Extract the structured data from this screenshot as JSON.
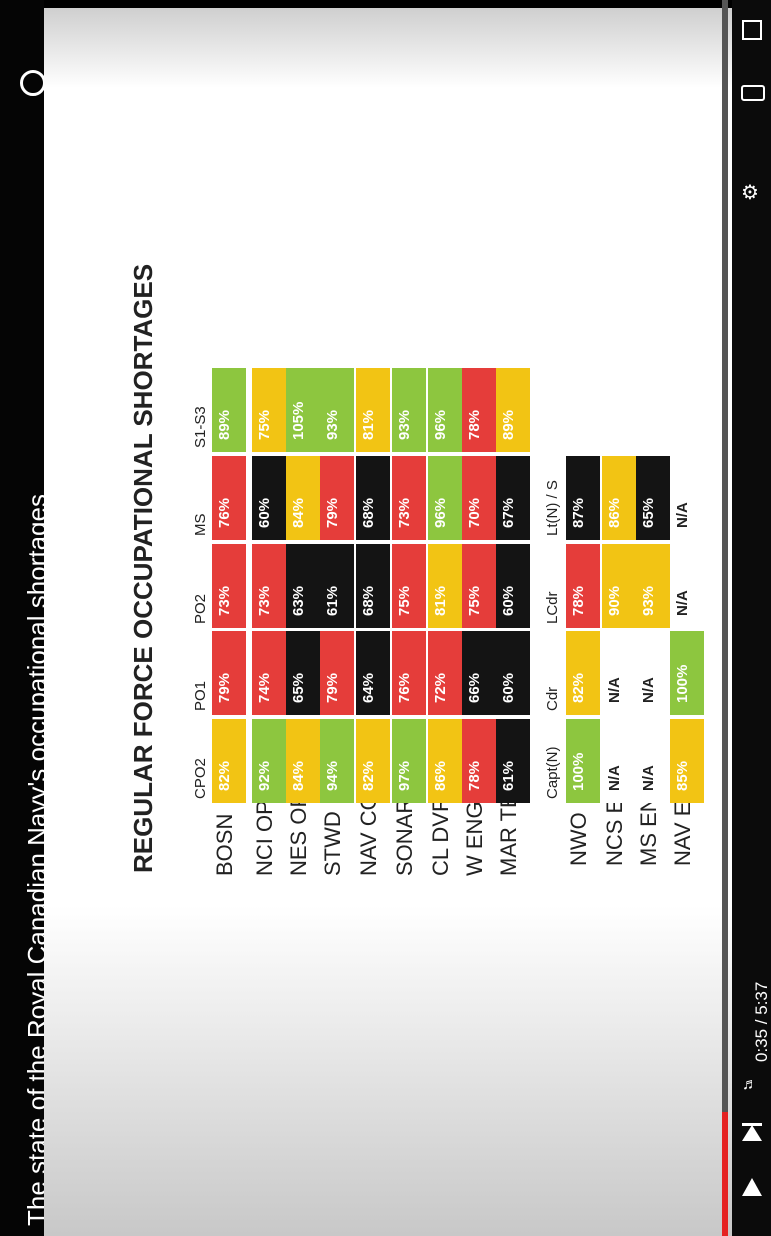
{
  "video": {
    "title": "The state of the Royal Canadian Navy's occupational shortages",
    "time": "0:35 / 5:37",
    "progress_fraction": 0.1
  },
  "slide": {
    "title": "REGULAR FORCE OCCUPATIONAL SHORTAGES",
    "nco_headers": [
      "CPO2",
      "PO1",
      "PO2",
      "MS",
      "S1-S3"
    ],
    "officer_headers": [
      "Capt(N)",
      "Cdr",
      "LCdr",
      "Lt(N) / S"
    ],
    "nco_rows": [
      {
        "label": "BOSN",
        "cells": [
          [
            "82%",
            "yellow"
          ],
          [
            "79%",
            "red"
          ],
          [
            "73%",
            "red"
          ],
          [
            "76%",
            "red"
          ],
          [
            "89%",
            "green"
          ]
        ]
      },
      {
        "label": "NCI OP",
        "cells": [
          [
            "92%",
            "green"
          ],
          [
            "74%",
            "red"
          ],
          [
            "73%",
            "red"
          ],
          [
            "60%",
            "black"
          ],
          [
            "75%",
            "yellow"
          ]
        ]
      },
      {
        "label": "NES OP",
        "cells": [
          [
            "84%",
            "yellow"
          ],
          [
            "65%",
            "black"
          ],
          [
            "63%",
            "black"
          ],
          [
            "84%",
            "yellow"
          ],
          [
            "105%",
            "green"
          ]
        ]
      },
      {
        "label": "STWD",
        "cells": [
          [
            "94%",
            "green"
          ],
          [
            "79%",
            "red"
          ],
          [
            "61%",
            "black"
          ],
          [
            "79%",
            "red"
          ],
          [
            "93%",
            "green"
          ]
        ]
      },
      {
        "label": "NAV COMM",
        "cells": [
          [
            "82%",
            "yellow"
          ],
          [
            "64%",
            "black"
          ],
          [
            "68%",
            "black"
          ],
          [
            "68%",
            "black"
          ],
          [
            "81%",
            "yellow"
          ]
        ]
      },
      {
        "label": "SONAR OP",
        "cells": [
          [
            "97%",
            "green"
          ],
          [
            "76%",
            "red"
          ],
          [
            "75%",
            "red"
          ],
          [
            "73%",
            "red"
          ],
          [
            "93%",
            "green"
          ]
        ]
      },
      {
        "label": "CL DVR",
        "cells": [
          [
            "86%",
            "yellow"
          ],
          [
            "72%",
            "red"
          ],
          [
            "81%",
            "yellow"
          ],
          [
            "96%",
            "green"
          ],
          [
            "96%",
            "green"
          ]
        ]
      },
      {
        "label": "W ENG TECH",
        "cells": [
          [
            "78%",
            "red"
          ],
          [
            "66%",
            "black"
          ],
          [
            "75%",
            "red"
          ],
          [
            "70%",
            "red"
          ],
          [
            "78%",
            "red"
          ]
        ]
      },
      {
        "label": "MAR TECH",
        "cells": [
          [
            "61%",
            "black"
          ],
          [
            "60%",
            "black"
          ],
          [
            "60%",
            "black"
          ],
          [
            "67%",
            "black"
          ],
          [
            "89%",
            "yellow"
          ]
        ]
      }
    ],
    "officer_rows": [
      {
        "label": "NWO",
        "cells": [
          [
            "100%",
            "green"
          ],
          [
            "82%",
            "yellow"
          ],
          [
            "78%",
            "red"
          ],
          [
            "87%",
            "black"
          ]
        ]
      },
      {
        "label": "NCS ENG",
        "cells": [
          [
            "N/A",
            "na"
          ],
          [
            "N/A",
            "na"
          ],
          [
            "90%",
            "yellow"
          ],
          [
            "86%",
            "yellow"
          ]
        ]
      },
      {
        "label": "MS ENG",
        "cells": [
          [
            "N/A",
            "na"
          ],
          [
            "N/A",
            "na"
          ],
          [
            "93%",
            "yellow"
          ],
          [
            "65%",
            "black"
          ]
        ]
      },
      {
        "label": "NAV ENG",
        "cells": [
          [
            "85%",
            "yellow"
          ],
          [
            "100%",
            "green"
          ],
          [
            "N/A",
            "na"
          ],
          [
            "N/A",
            "na"
          ]
        ]
      }
    ]
  }
}
